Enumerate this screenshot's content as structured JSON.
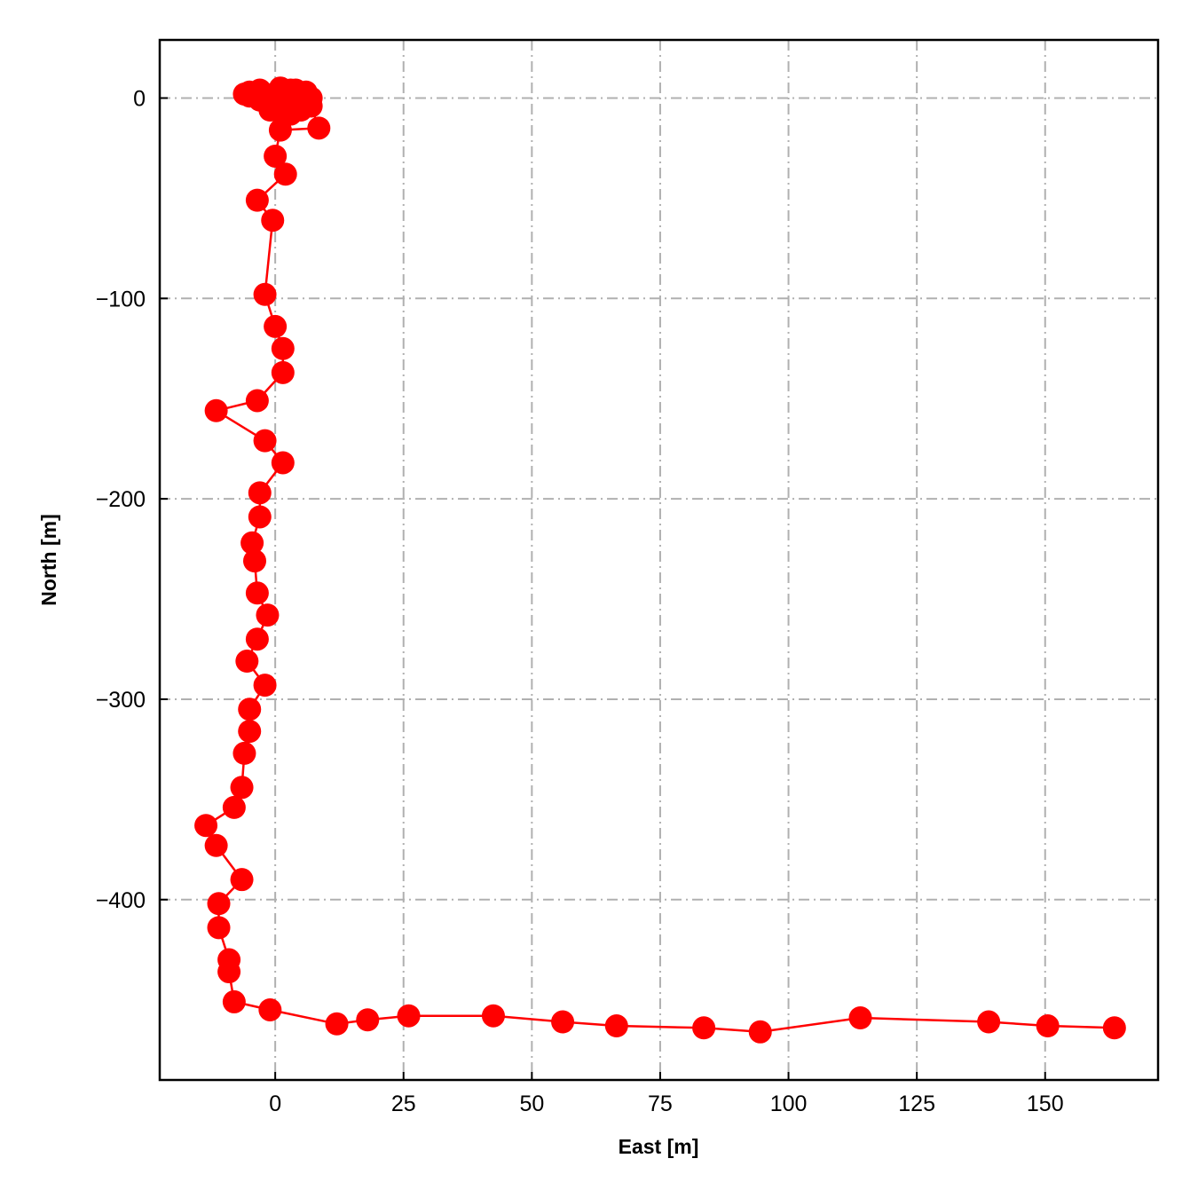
{
  "chart_data": {
    "type": "line",
    "xlabel": "East [m]",
    "ylabel": "North [m]",
    "xlim": [
      -22.5,
      172
    ],
    "ylim": [
      -490,
      29
    ],
    "xticks": [
      0,
      25,
      50,
      75,
      100,
      125,
      150
    ],
    "yticks": [
      0,
      -100,
      -200,
      -300,
      -400
    ],
    "xtick_labels": [
      "0",
      "25",
      "50",
      "75",
      "100",
      "125",
      "150"
    ],
    "ytick_labels": [
      "0",
      "−100",
      "−200",
      "−300",
      "−400"
    ],
    "grid": true,
    "series": [
      {
        "color": "#ff0000",
        "marker": "circle",
        "x": [
          0,
          2,
          4,
          6,
          7,
          5,
          3,
          1,
          -1,
          -3,
          -5,
          -6,
          -5,
          -3,
          -2,
          0,
          2,
          4,
          5,
          6,
          4,
          2,
          1,
          3,
          4,
          2,
          0,
          -1,
          1,
          3,
          5,
          7,
          8.5,
          1,
          0,
          2,
          -3.5,
          -0.5,
          -2,
          0,
          1.5,
          1.5,
          -3.5,
          -11.5,
          -2,
          1.5,
          -3,
          -3,
          -4.5,
          -4,
          -3.5,
          -1.5,
          -3.5,
          -5.5,
          -2,
          -5,
          -5,
          -6,
          -6.5,
          -8,
          -13.5,
          -11.5,
          -6.5,
          -11,
          -11,
          -9,
          -9,
          -8,
          -1,
          12,
          18,
          26,
          42.5,
          56,
          66.5,
          83.5,
          94.5,
          114,
          139,
          150.5,
          163.5
        ],
        "y": [
          0,
          2,
          4,
          3,
          0,
          -2,
          -4,
          -5,
          -3,
          -1,
          1,
          2,
          3,
          4,
          2,
          0,
          -3,
          -5,
          -4,
          -2,
          0,
          3,
          5,
          4,
          1,
          -2,
          -4,
          -6,
          -7,
          -8,
          -6,
          -4,
          -15,
          -16,
          -29,
          -38,
          -51,
          -61,
          -98,
          -114,
          -125,
          -137,
          -151,
          -156,
          -171,
          -182,
          -197,
          -209,
          -222,
          -231,
          -247,
          -258,
          -270,
          -281,
          -293,
          -305,
          -316,
          -327,
          -344,
          -354,
          -363,
          -373,
          -390,
          -402,
          -414,
          -430,
          -436,
          -451,
          -455,
          -462,
          -460,
          -458,
          -458,
          -461,
          -463,
          -464,
          -466,
          -459,
          -461,
          -463,
          -464
        ]
      }
    ]
  }
}
